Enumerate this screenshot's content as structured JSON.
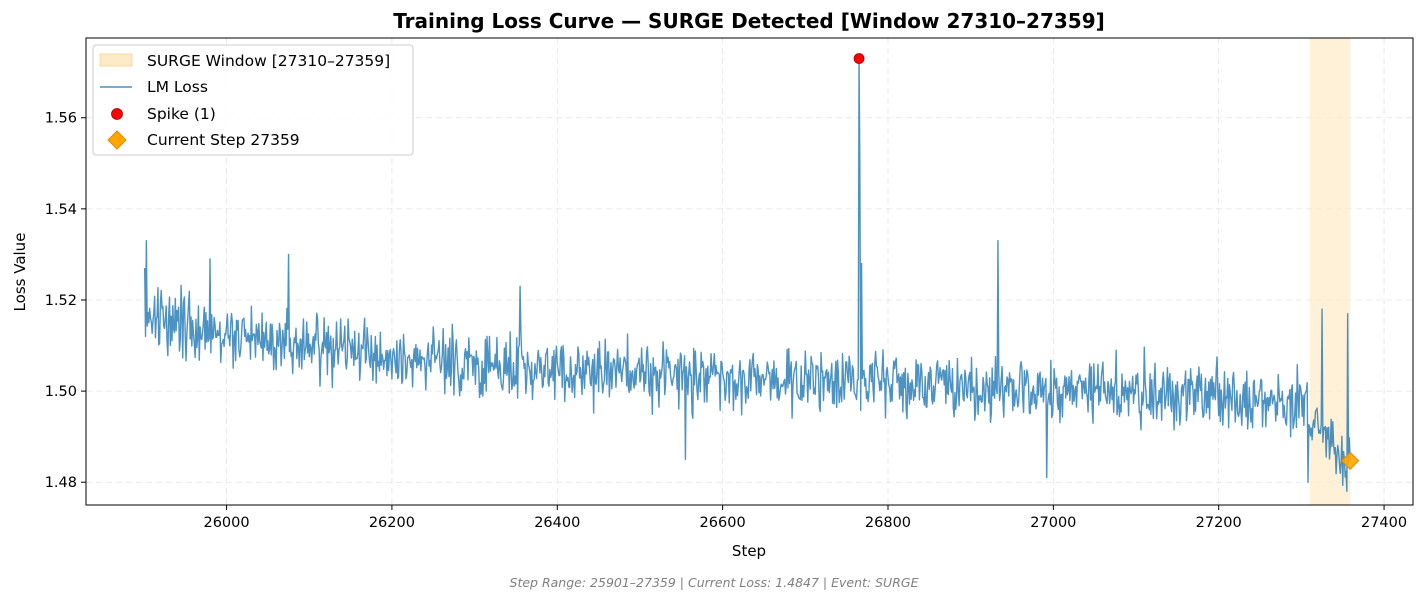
{
  "chart_data": {
    "type": "line",
    "title": "Training Loss Curve — SURGE Detected [Window 27310–27359]",
    "xlabel": "Step",
    "ylabel": "Loss Value",
    "xlim": [
      25830,
      27435
    ],
    "ylim": [
      1.475,
      1.5775
    ],
    "xticks": [
      26000,
      26200,
      26400,
      26600,
      26800,
      27000,
      27200,
      27400
    ],
    "yticks": [
      1.48,
      1.5,
      1.52,
      1.54,
      1.56
    ],
    "xtick_labels": [
      "26000",
      "26200",
      "26400",
      "26600",
      "26800",
      "27000",
      "27200",
      "27400"
    ],
    "ytick_labels": [
      "1.48",
      "1.50",
      "1.52",
      "1.54",
      "1.56"
    ],
    "grid": true,
    "legend_position": "top-left",
    "series": [
      {
        "name": "LM Loss",
        "color": "#1f77b4",
        "x_start": 25901,
        "x_end": 27359,
        "trend_points": [
          [
            25901,
            1.516
          ],
          [
            26000,
            1.512
          ],
          [
            26100,
            1.51
          ],
          [
            26200,
            1.508
          ],
          [
            26300,
            1.506
          ],
          [
            26400,
            1.505
          ],
          [
            26500,
            1.504
          ],
          [
            26600,
            1.503
          ],
          [
            26700,
            1.5025
          ],
          [
            26800,
            1.502
          ],
          [
            26900,
            1.501
          ],
          [
            27000,
            1.5
          ],
          [
            27100,
            1.5
          ],
          [
            27200,
            1.499
          ],
          [
            27300,
            1.497
          ],
          [
            27359,
            1.4847
          ]
        ],
        "noise_amplitude": 0.006,
        "notable_points": [
          [
            25901,
            1.527
          ],
          [
            25903,
            1.533
          ],
          [
            25980,
            1.529
          ],
          [
            26075,
            1.53
          ],
          [
            26355,
            1.523
          ],
          [
            26555,
            1.485
          ],
          [
            26765,
            1.573
          ],
          [
            26766,
            1.548
          ],
          [
            26768,
            1.528
          ],
          [
            26933,
            1.533
          ],
          [
            26992,
            1.481
          ],
          [
            27308,
            1.48
          ],
          [
            27325,
            1.518
          ],
          [
            27356,
            1.517
          ],
          [
            27359,
            1.4847
          ]
        ]
      }
    ],
    "spike": {
      "name": "Spike (1)",
      "x": 26765,
      "y": 1.573,
      "color": "#ff0000"
    },
    "current_step": {
      "name": "Current Step 27359",
      "x": 27359,
      "y": 1.4847,
      "color": "#ffa500"
    },
    "surge_window": {
      "name": "SURGE Window [27310–27359]",
      "x_start": 27310,
      "x_end": 27359,
      "color": "#fdebc8"
    }
  },
  "footer": "Step Range: 25901–27359 | Current Loss: 1.4847 | Event: SURGE"
}
